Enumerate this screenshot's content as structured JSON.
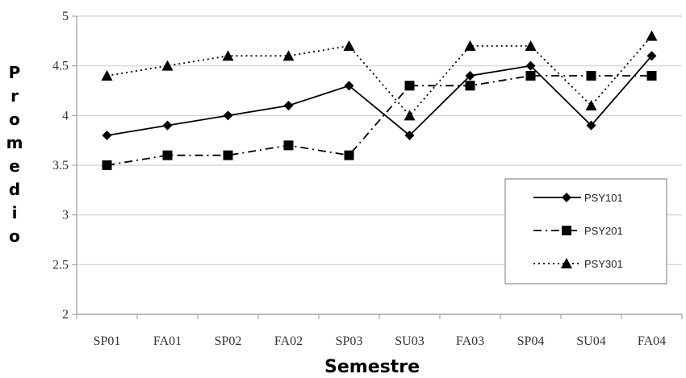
{
  "chart_data": {
    "type": "line",
    "title": "",
    "xlabel": "Semestre",
    "ylabel": "Promedio",
    "categories": [
      "SP01",
      "FA01",
      "SP02",
      "FA02",
      "SP03",
      "SU03",
      "FA03",
      "SP04",
      "SU04",
      "FA04"
    ],
    "ylim": [
      2,
      5
    ],
    "yticks": [
      "2",
      "2.5",
      "3",
      "3.5",
      "4",
      "4.5",
      "5"
    ],
    "grid": "horizontal",
    "legend_position": "bottom-right",
    "series": [
      {
        "name": "PSY101",
        "style": "solid",
        "marker": "diamond",
        "values": [
          3.8,
          3.9,
          4.0,
          4.1,
          4.3,
          3.8,
          4.4,
          4.5,
          3.9,
          4.6
        ]
      },
      {
        "name": "PSY201",
        "style": "dashdot",
        "marker": "square",
        "values": [
          3.5,
          3.6,
          3.6,
          3.7,
          3.6,
          4.3,
          4.3,
          4.4,
          4.4,
          4.4
        ]
      },
      {
        "name": "PSY301",
        "style": "dotted",
        "marker": "triangle",
        "values": [
          4.4,
          4.5,
          4.6,
          4.6,
          4.7,
          4.0,
          4.7,
          4.7,
          4.1,
          4.8
        ]
      }
    ]
  }
}
